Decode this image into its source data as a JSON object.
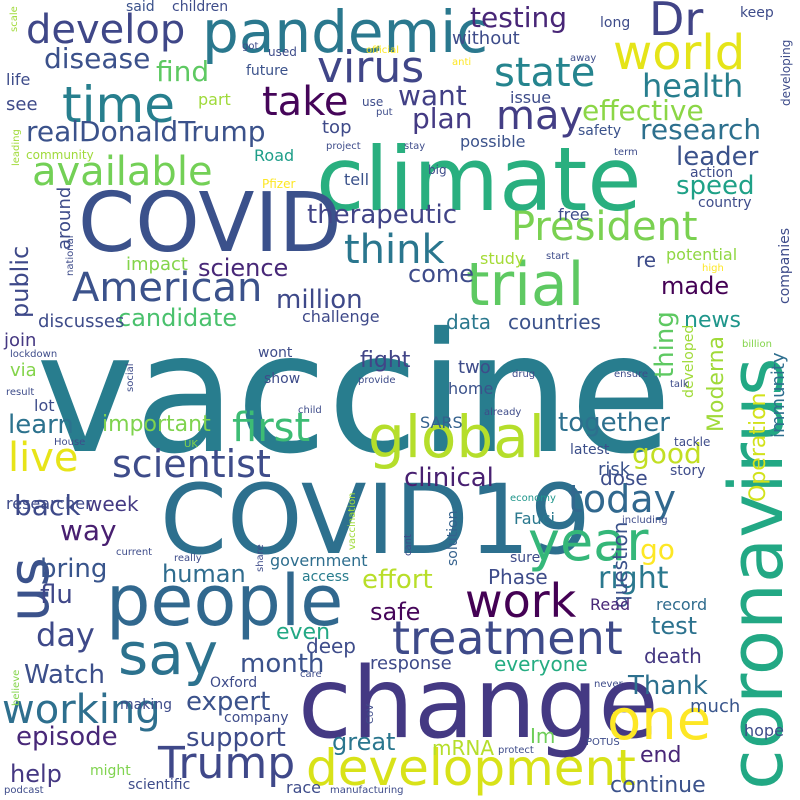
{
  "words": [
    {
      "text": "vaccine",
      "color": "#287d8e"
    },
    {
      "text": "climate",
      "color": "#29af7f"
    },
    {
      "text": "change",
      "color": "#443983"
    },
    {
      "text": "COVID19",
      "color": "#2d708e"
    },
    {
      "text": "coronavirus",
      "color": "#22a884"
    },
    {
      "text": "COVID",
      "color": "#3b518b"
    },
    {
      "text": "people",
      "color": "#31688e"
    },
    {
      "text": "pandemic",
      "color": "#2a788e"
    },
    {
      "text": "trial",
      "color": "#5ec962"
    },
    {
      "text": "global",
      "color": "#b5de2b"
    },
    {
      "text": "development",
      "color": "#d8e219"
    },
    {
      "text": "treatment",
      "color": "#3e4a89"
    },
    {
      "text": "work",
      "color": "#440154"
    },
    {
      "text": "year",
      "color": "#35b779"
    },
    {
      "text": "one",
      "color": "#fde725"
    },
    {
      "text": "us",
      "color": "#3b528b"
    },
    {
      "text": "say",
      "color": "#2c728e"
    },
    {
      "text": "time",
      "color": "#277f8e"
    },
    {
      "text": "world",
      "color": "#e5e419"
    },
    {
      "text": "Dr",
      "color": "#414487"
    },
    {
      "text": "virus",
      "color": "#404688"
    },
    {
      "text": "develop",
      "color": "#3f4788"
    },
    {
      "text": "state",
      "color": "#25848e"
    },
    {
      "text": "take",
      "color": "#450559"
    },
    {
      "text": "may",
      "color": "#433e85"
    },
    {
      "text": "President",
      "color": "#7ad151"
    },
    {
      "text": "American",
      "color": "#3b528b"
    },
    {
      "text": "available",
      "color": "#73d056"
    },
    {
      "text": "first",
      "color": "#3dbc74"
    },
    {
      "text": "think",
      "color": "#2a768e"
    },
    {
      "text": "scientist",
      "color": "#3e4c8a"
    },
    {
      "text": "live",
      "color": "#e7e419"
    },
    {
      "text": "Trump",
      "color": "#3f4889"
    },
    {
      "text": "working",
      "color": "#2e6f8e"
    },
    {
      "text": "today",
      "color": "#31688e"
    },
    {
      "text": "health",
      "color": "#277e8e"
    },
    {
      "text": "research",
      "color": "#2d708e"
    },
    {
      "text": "effective",
      "color": "#8bd646"
    },
    {
      "text": "realDonaldTrump",
      "color": "#3b528b"
    },
    {
      "text": "testing",
      "color": "#482677"
    },
    {
      "text": "disease",
      "color": "#3b518b"
    },
    {
      "text": "find",
      "color": "#5ec962"
    },
    {
      "text": "want",
      "color": "#424086"
    },
    {
      "text": "plan",
      "color": "#443a83"
    },
    {
      "text": "leader",
      "color": "#3b528b"
    },
    {
      "text": "speed",
      "color": "#1fa187"
    },
    {
      "text": "therapeutic",
      "color": "#414487"
    },
    {
      "text": "million",
      "color": "#3e4989"
    },
    {
      "text": "candidate",
      "color": "#4ac16d"
    },
    {
      "text": "science",
      "color": "#482878"
    },
    {
      "text": "come",
      "color": "#3e4c8a"
    },
    {
      "text": "made",
      "color": "#440154"
    },
    {
      "text": "news",
      "color": "#1f968b"
    },
    {
      "text": "public",
      "color": "#3e4989"
    },
    {
      "text": "thing",
      "color": "#5ec962"
    },
    {
      "text": "Moderna",
      "color": "#a0da39"
    },
    {
      "text": "Operation",
      "color": "#d2e21b"
    },
    {
      "text": "immunity",
      "color": "#2e6e8e"
    },
    {
      "text": "countries",
      "color": "#3b528b"
    },
    {
      "text": "data",
      "color": "#2a788e"
    },
    {
      "text": "clinical",
      "color": "#482071"
    },
    {
      "text": "learn",
      "color": "#2c728e"
    },
    {
      "text": "important",
      "color": "#7fd34e"
    },
    {
      "text": "together",
      "color": "#2d708e"
    },
    {
      "text": "good",
      "color": "#c2df23"
    },
    {
      "text": "fight",
      "color": "#414487"
    },
    {
      "text": "back",
      "color": "#3e4a89"
    },
    {
      "text": "week",
      "color": "#443a83"
    },
    {
      "text": "way",
      "color": "#481f70"
    },
    {
      "text": "bring",
      "color": "#39558c"
    },
    {
      "text": "human",
      "color": "#2f6c8e"
    },
    {
      "text": "effort",
      "color": "#b8de29"
    },
    {
      "text": "right",
      "color": "#2a788e"
    },
    {
      "text": "flu",
      "color": "#3f4788"
    },
    {
      "text": "day",
      "color": "#3e4989"
    },
    {
      "text": "safe",
      "color": "#450559"
    },
    {
      "text": "month",
      "color": "#3b528b"
    },
    {
      "text": "Watch",
      "color": "#3c4f8a"
    },
    {
      "text": "expert",
      "color": "#3b528b"
    },
    {
      "text": "support",
      "color": "#3e4c8a"
    },
    {
      "text": "episode",
      "color": "#482878"
    },
    {
      "text": "help",
      "color": "#453882"
    },
    {
      "text": "continue",
      "color": "#3b528b"
    },
    {
      "text": "end",
      "color": "#482677"
    },
    {
      "text": "great",
      "color": "#2a768e"
    },
    {
      "text": "mRNA",
      "color": "#b5de2b"
    },
    {
      "text": "Thank",
      "color": "#2d708e"
    },
    {
      "text": "test",
      "color": "#2c728e"
    },
    {
      "text": "go",
      "color": "#fde725"
    },
    {
      "text": "question",
      "color": "#3b528b"
    },
    {
      "text": "even",
      "color": "#22a884"
    },
    {
      "text": "deep",
      "color": "#3e4c8a"
    },
    {
      "text": "response",
      "color": "#3e4a89"
    },
    {
      "text": "everyone",
      "color": "#25ac82"
    },
    {
      "text": "death",
      "color": "#453882"
    },
    {
      "text": "much",
      "color": "#39558c"
    },
    {
      "text": "hope",
      "color": "#3e4c8a"
    },
    {
      "text": "Phase",
      "color": "#3e4c8a"
    },
    {
      "text": "Read",
      "color": "#482878"
    },
    {
      "text": "record",
      "color": "#2f6c8e"
    },
    {
      "text": "government",
      "color": "#2e6e8e"
    },
    {
      "text": "access",
      "color": "#287d8e"
    },
    {
      "text": "dose",
      "color": "#3d4d8a"
    },
    {
      "text": "SARS",
      "color": "#34618d"
    },
    {
      "text": "latest",
      "color": "#3c4f8a"
    },
    {
      "text": "risk",
      "color": "#3b528b"
    },
    {
      "text": "two",
      "color": "#3e4c8a"
    },
    {
      "text": "home",
      "color": "#3b528b"
    },
    {
      "text": "researcher",
      "color": "#3e4a89"
    },
    {
      "text": "Fauci",
      "color": "#2a788e"
    },
    {
      "text": "solution",
      "color": "#34618d"
    },
    {
      "text": "sure",
      "color": "#3e4c8a"
    },
    {
      "text": "Im",
      "color": "#6ece58"
    },
    {
      "text": "lot",
      "color": "#3e4c8a"
    },
    {
      "text": "via",
      "color": "#84d44b"
    },
    {
      "text": "join",
      "color": "#453882"
    },
    {
      "text": "discusses",
      "color": "#3e4c8a"
    },
    {
      "text": "challenge",
      "color": "#3e4989"
    },
    {
      "text": "impact",
      "color": "#84d44b"
    },
    {
      "text": "potential",
      "color": "#90d743"
    },
    {
      "text": "re",
      "color": "#3e4c8a"
    },
    {
      "text": "study",
      "color": "#a5db36"
    },
    {
      "text": "around",
      "color": "#3e4c8a"
    },
    {
      "text": "free",
      "color": "#3e4c8a"
    },
    {
      "text": "tell",
      "color": "#3b528b"
    },
    {
      "text": "Road",
      "color": "#1f9e89"
    },
    {
      "text": "community",
      "color": "#9fda3a"
    },
    {
      "text": "top",
      "color": "#3e4a89"
    },
    {
      "text": "possible",
      "color": "#3b528b"
    },
    {
      "text": "safety",
      "color": "#3b528b"
    },
    {
      "text": "issue",
      "color": "#3e4c8a"
    },
    {
      "text": "see",
      "color": "#3e4a89"
    },
    {
      "text": "part",
      "color": "#9fda3a"
    },
    {
      "text": "future",
      "color": "#3b528b"
    },
    {
      "text": "life",
      "color": "#3e4c8a"
    },
    {
      "text": "said",
      "color": "#3b528b"
    },
    {
      "text": "children",
      "color": "#3e4c8a"
    },
    {
      "text": "without",
      "color": "#3e4c8a"
    },
    {
      "text": "long",
      "color": "#3e4c8a"
    },
    {
      "text": "keep",
      "color": "#3e4c8a"
    },
    {
      "text": "away",
      "color": "#3e4c8a"
    },
    {
      "text": "developing",
      "color": "#3e4c8a"
    },
    {
      "text": "action",
      "color": "#3e4c8a"
    },
    {
      "text": "country",
      "color": "#3e4c8a"
    },
    {
      "text": "companies",
      "color": "#3e4c8a"
    },
    {
      "text": "company",
      "color": "#3e4c8a"
    },
    {
      "text": "might",
      "color": "#7fd34e"
    },
    {
      "text": "scientific",
      "color": "#3e4c8a"
    },
    {
      "text": "race",
      "color": "#3e4c8a"
    },
    {
      "text": "making",
      "color": "#3e4c8a"
    },
    {
      "text": "Oxford",
      "color": "#3e4c8a"
    },
    {
      "text": "wont",
      "color": "#3e4c8a"
    },
    {
      "text": "show",
      "color": "#3e4c8a"
    },
    {
      "text": "developed",
      "color": "#a0da39"
    },
    {
      "text": "story",
      "color": "#3e4c8a"
    },
    {
      "text": "tackle",
      "color": "#3e4c8a"
    },
    {
      "text": "talk",
      "color": "#3e4c8a"
    },
    {
      "text": "ensure",
      "color": "#3e4c8a"
    },
    {
      "text": "billion",
      "color": "#84d44b"
    },
    {
      "text": "use",
      "color": "#3e4c8a"
    },
    {
      "text": "used",
      "color": "#3e4c8a"
    },
    {
      "text": "got",
      "color": "#3e4c8a"
    },
    {
      "text": "official",
      "color": "#fde725"
    },
    {
      "text": "anti",
      "color": "#fde725"
    },
    {
      "text": "put",
      "color": "#3e4c8a"
    },
    {
      "text": "project",
      "color": "#3e4c8a"
    },
    {
      "text": "stay",
      "color": "#3e4c8a"
    },
    {
      "text": "big",
      "color": "#3e4c8a"
    },
    {
      "text": "term",
      "color": "#3e4c8a"
    },
    {
      "text": "Pfizer",
      "color": "#fde725"
    },
    {
      "text": "leading",
      "color": "#a0da39"
    },
    {
      "text": "scale",
      "color": "#a0da39"
    },
    {
      "text": "national",
      "color": "#3e4c8a"
    },
    {
      "text": "start",
      "color": "#3e4c8a"
    },
    {
      "text": "high",
      "color": "#fde725"
    },
    {
      "text": "lockdown",
      "color": "#3e4c8a"
    },
    {
      "text": "social",
      "color": "#3e4c8a"
    },
    {
      "text": "provide",
      "color": "#3e4c8a"
    },
    {
      "text": "drug",
      "color": "#3e4c8a"
    },
    {
      "text": "child",
      "color": "#3e4c8a"
    },
    {
      "text": "already",
      "color": "#3e4c8a"
    },
    {
      "text": "result",
      "color": "#3e4c8a"
    },
    {
      "text": "House",
      "color": "#3e4c8a"
    },
    {
      "text": "UK",
      "color": "#84d44b"
    },
    {
      "text": "vaccination",
      "color": "#a0da39"
    },
    {
      "text": "economy",
      "color": "#1f968b"
    },
    {
      "text": "including",
      "color": "#3e4c8a"
    },
    {
      "text": "current",
      "color": "#3e4c8a"
    },
    {
      "text": "really",
      "color": "#3e4c8a"
    },
    {
      "text": "share",
      "color": "#3e4c8a"
    },
    {
      "text": "cant",
      "color": "#3e4c8a"
    },
    {
      "text": "believe",
      "color": "#84d44b"
    },
    {
      "text": "care",
      "color": "#3e4c8a"
    },
    {
      "text": "CoV",
      "color": "#3e4c8a"
    },
    {
      "text": "never",
      "color": "#3e4c8a"
    },
    {
      "text": "protect",
      "color": "#3e4c8a"
    },
    {
      "text": "POTUS",
      "color": "#3e4c8a"
    },
    {
      "text": "podcast",
      "color": "#3e4c8a"
    },
    {
      "text": "manufacturing",
      "color": "#3e4c8a"
    }
  ]
}
